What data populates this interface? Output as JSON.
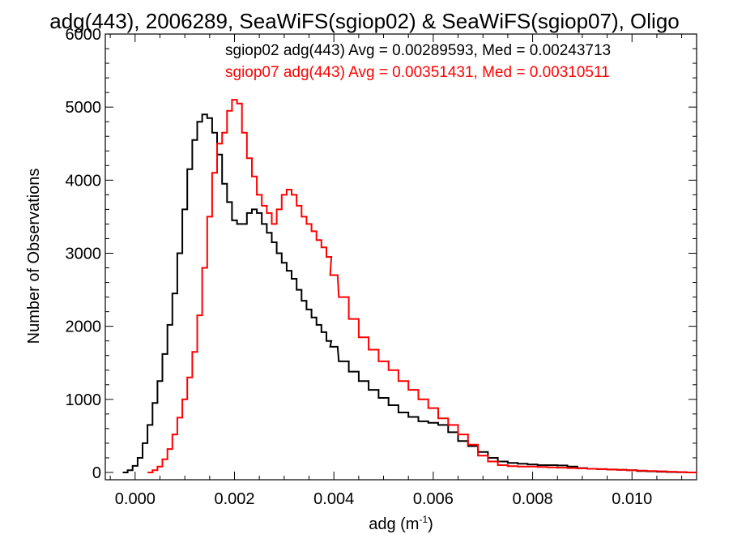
{
  "chart_data": {
    "type": "line",
    "title": "adg(443), 2006289, SeaWiFS(sgiop02) & SeaWiFS(sgiop07), Oligo",
    "xlabel": "adg (m",
    "xlabel_sup": "-1",
    "xlabel_close": ")",
    "ylabel": "Number of Observations",
    "xlim": [
      -0.0006,
      0.0113
    ],
    "ylim": [
      -100,
      6000
    ],
    "xticks": [
      0.0,
      0.002,
      0.004,
      0.006,
      0.008,
      0.01
    ],
    "xtick_labels": [
      "0.000",
      "0.002",
      "0.004",
      "0.006",
      "0.008",
      "0.010"
    ],
    "yticks": [
      0,
      1000,
      2000,
      3000,
      4000,
      5000,
      6000
    ],
    "ytick_labels": [
      "0",
      "1000",
      "2000",
      "3000",
      "4000",
      "5000",
      "6000"
    ],
    "grid": false,
    "legend": "top-right",
    "series": [
      {
        "name": "sgiop02 adg(443) Avg = 0.00289593, Med = 0.00243713",
        "color": "#000000",
        "x": [
          -0.0002,
          -0.0001,
          0.0,
          0.0001,
          0.0002,
          0.0003,
          0.0004,
          0.0005,
          0.0006,
          0.0007,
          0.0008,
          0.0009,
          0.001,
          0.0011,
          0.0012,
          0.0013,
          0.0014,
          0.0015,
          0.0016,
          0.0017,
          0.0018,
          0.0019,
          0.002,
          0.0021,
          0.0022,
          0.0023,
          0.0024,
          0.0025,
          0.0026,
          0.0027,
          0.0028,
          0.0029,
          0.003,
          0.0031,
          0.0032,
          0.0033,
          0.0034,
          0.0035,
          0.0036,
          0.0037,
          0.0038,
          0.0039,
          0.004,
          0.0042,
          0.0044,
          0.0046,
          0.0048,
          0.005,
          0.0052,
          0.0054,
          0.0056,
          0.0058,
          0.006,
          0.0062,
          0.0064,
          0.0066,
          0.0068,
          0.007,
          0.0072,
          0.0074,
          0.0076,
          0.0078,
          0.008,
          0.0082,
          0.0084,
          0.0086,
          0.0088,
          0.009,
          0.0092,
          0.0094,
          0.0096,
          0.0098,
          0.01,
          0.0102,
          0.0104,
          0.0106,
          0.0108,
          0.011,
          0.0112
        ],
        "values": [
          0,
          30,
          90,
          200,
          400,
          650,
          950,
          1250,
          1620,
          2020,
          2450,
          3000,
          3600,
          4150,
          4550,
          4800,
          4900,
          4850,
          4650,
          4350,
          3950,
          3700,
          3450,
          3400,
          3400,
          3550,
          3600,
          3550,
          3400,
          3280,
          3150,
          3000,
          2870,
          2760,
          2650,
          2500,
          2350,
          2230,
          2120,
          2020,
          1920,
          1800,
          1720,
          1520,
          1380,
          1250,
          1130,
          1020,
          920,
          820,
          760,
          700,
          680,
          650,
          550,
          430,
          360,
          280,
          200,
          150,
          130,
          120,
          110,
          100,
          100,
          95,
          80,
          60,
          50,
          45,
          40,
          35,
          30,
          20,
          15,
          10,
          5,
          3,
          0
        ]
      },
      {
        "name": "sgiop07 adg(443) Avg = 0.00351431, Med = 0.00310511",
        "color": "#ff0000",
        "x": [
          0.0003,
          0.0004,
          0.0005,
          0.0006,
          0.0007,
          0.0008,
          0.0009,
          0.001,
          0.0011,
          0.0012,
          0.0013,
          0.0014,
          0.0015,
          0.0016,
          0.0017,
          0.0018,
          0.0019,
          0.002,
          0.0021,
          0.0022,
          0.0023,
          0.0024,
          0.0025,
          0.0026,
          0.0027,
          0.0028,
          0.0029,
          0.003,
          0.0031,
          0.0032,
          0.0033,
          0.0034,
          0.0035,
          0.0036,
          0.0037,
          0.0038,
          0.0039,
          0.004,
          0.0042,
          0.0044,
          0.0046,
          0.0048,
          0.005,
          0.0052,
          0.0054,
          0.0056,
          0.0058,
          0.006,
          0.0062,
          0.0064,
          0.0066,
          0.0068,
          0.007,
          0.0072,
          0.0074,
          0.0076,
          0.0078,
          0.008,
          0.0082,
          0.0084,
          0.0086,
          0.0088,
          0.009,
          0.0092,
          0.0094,
          0.0096,
          0.0098,
          0.01,
          0.0102,
          0.0104,
          0.0106,
          0.0108,
          0.011,
          0.0112
        ],
        "values": [
          0,
          30,
          80,
          180,
          320,
          520,
          750,
          1000,
          1300,
          1650,
          2150,
          2800,
          3500,
          4100,
          4500,
          4650,
          4950,
          5100,
          5050,
          4650,
          4300,
          4050,
          3800,
          3650,
          3550,
          3400,
          3600,
          3800,
          3870,
          3800,
          3650,
          3500,
          3400,
          3300,
          3180,
          3080,
          2950,
          2700,
          2400,
          2100,
          1850,
          1680,
          1520,
          1400,
          1250,
          1130,
          1000,
          880,
          740,
          650,
          520,
          380,
          230,
          150,
          100,
          85,
          80,
          80,
          75,
          70,
          65,
          60,
          55,
          50,
          45,
          40,
          35,
          30,
          25,
          20,
          15,
          10,
          5,
          0
        ]
      }
    ]
  }
}
